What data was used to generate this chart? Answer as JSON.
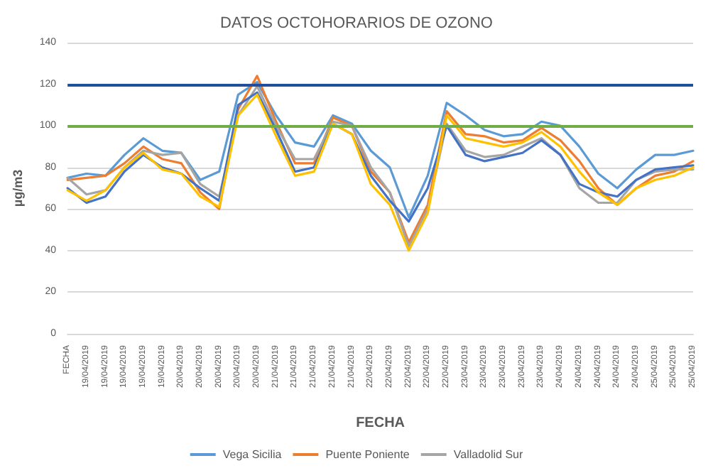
{
  "chart_data": {
    "type": "line",
    "title": "DATOS OCTOHORARIOS DE OZONO",
    "xlabel": "FECHA",
    "ylabel": "µg/m3",
    "categories": [
      "FECHA",
      "19/04/2019",
      "19/04/2019",
      "19/04/2019",
      "19/04/2019",
      "19/04/2019",
      "20/04/2019",
      "20/04/2019",
      "20/04/2019",
      "20/04/2019",
      "20/04/2019",
      "21/04/2019",
      "21/04/2019",
      "21/04/2019",
      "21/04/2019",
      "21/04/2019",
      "22/04/2019",
      "22/04/2019",
      "22/04/2019",
      "22/04/2019",
      "22/04/2019",
      "23/04/2019",
      "23/04/2019",
      "23/04/2019",
      "23/04/2019",
      "23/04/2019",
      "24/04/2019",
      "24/04/2019",
      "24/04/2019",
      "24/04/2019",
      "24/04/2019",
      "25/04/2019",
      "25/04/2019",
      "25/04/2019"
    ],
    "series": [
      {
        "name": "Vega Sicilia",
        "color": "#5b9bd5",
        "values": [
          75,
          77,
          76,
          86,
          94,
          88,
          87,
          74,
          78,
          115,
          121,
          105,
          92,
          90,
          105,
          101,
          88,
          80,
          56,
          76,
          111,
          105,
          98,
          95,
          96,
          102,
          100,
          90,
          77,
          70,
          79,
          86,
          86,
          88
        ]
      },
      {
        "name": "Puente Poniente",
        "color": "#ed7d31",
        "values": [
          74,
          75,
          76,
          82,
          90,
          84,
          82,
          68,
          60,
          108,
          124,
          102,
          82,
          82,
          104,
          100,
          78,
          68,
          44,
          62,
          107,
          96,
          95,
          92,
          93,
          99,
          93,
          83,
          70,
          62,
          70,
          76,
          78,
          83
        ]
      },
      {
        "name": "Valladolid Sur",
        "color": "#a5a5a5",
        "values": [
          75,
          67,
          69,
          80,
          88,
          86,
          87,
          72,
          66,
          105,
          119,
          100,
          84,
          84,
          102,
          100,
          80,
          68,
          42,
          60,
          101,
          88,
          85,
          86,
          90,
          94,
          86,
          70,
          63,
          63,
          74,
          78,
          79,
          79
        ]
      },
      {
        "color": "#4472c4",
        "values": [
          70,
          63,
          66,
          78,
          86,
          80,
          77,
          70,
          64,
          110,
          116,
          98,
          78,
          80,
          101,
          96,
          76,
          64,
          54,
          70,
          100,
          86,
          83,
          85,
          87,
          93,
          86,
          72,
          68,
          66,
          74,
          79,
          80,
          81
        ]
      },
      {
        "color": "#ffc000",
        "values": [
          69,
          64,
          69,
          80,
          87,
          79,
          77,
          66,
          61,
          105,
          115,
          95,
          76,
          78,
          101,
          96,
          72,
          62,
          40,
          58,
          105,
          94,
          92,
          90,
          92,
          97,
          90,
          78,
          68,
          62,
          70,
          74,
          76,
          80
        ]
      }
    ],
    "ylim": [
      0,
      140
    ],
    "yticks": [
      0,
      20,
      40,
      60,
      80,
      100,
      120,
      140
    ],
    "grid": "y",
    "legend": "bottom",
    "marker": "none",
    "line_style": "solid",
    "ref_lines": [
      {
        "axis": "y",
        "value": 120,
        "color": "#1f4e9c"
      },
      {
        "axis": "y",
        "value": 100,
        "color": "#70ad47"
      }
    ]
  }
}
